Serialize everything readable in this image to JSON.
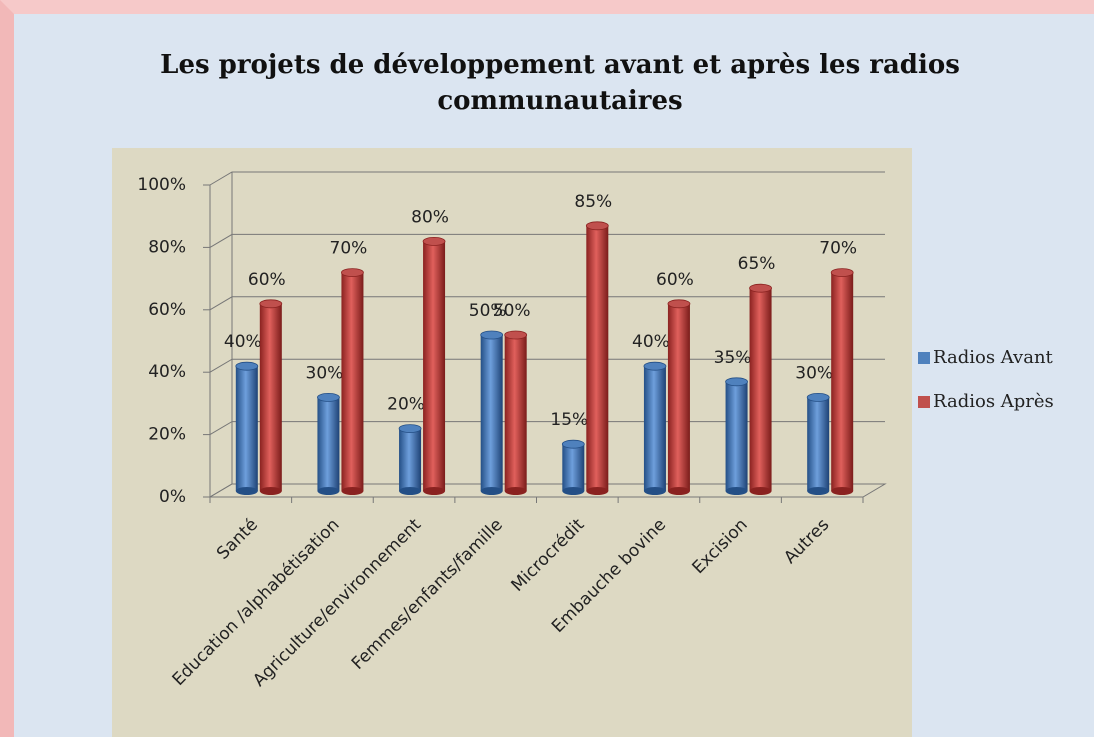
{
  "chart_data": {
    "type": "bar",
    "title": [
      "Les projets de développement avant et après les radios",
      "communautaires"
    ],
    "categories": [
      "Santé",
      "Education /alphabétisation",
      "Agriculture/environnement",
      "Femmes/enfants/famille",
      "Microcrédit",
      "Embauche bovine",
      "Excision",
      "Autres"
    ],
    "series": [
      {
        "name": "Radios Avant",
        "color": "#4f81bd",
        "values": [
          40,
          30,
          20,
          50,
          15,
          40,
          35,
          30
        ],
        "value_labels": [
          "40%",
          "30%",
          "20%",
          "50%",
          "15%",
          "40%",
          "35%",
          "30%"
        ]
      },
      {
        "name": "Radios Après",
        "color": "#c0504d",
        "values": [
          60,
          70,
          80,
          50,
          85,
          60,
          65,
          70
        ],
        "value_labels": [
          "60%",
          "70%",
          "80%",
          "50%",
          "85%",
          "60%",
          "65%",
          "70%"
        ]
      }
    ],
    "ylim": [
      0,
      100
    ],
    "yticks": [
      {
        "value": 0,
        "label": "0%"
      },
      {
        "value": 20,
        "label": "20%"
      },
      {
        "value": 40,
        "label": "40%"
      },
      {
        "value": 60,
        "label": "60%"
      },
      {
        "value": 80,
        "label": "80%"
      },
      {
        "value": 100,
        "label": "100%"
      }
    ],
    "grid": true,
    "legend": "right"
  }
}
